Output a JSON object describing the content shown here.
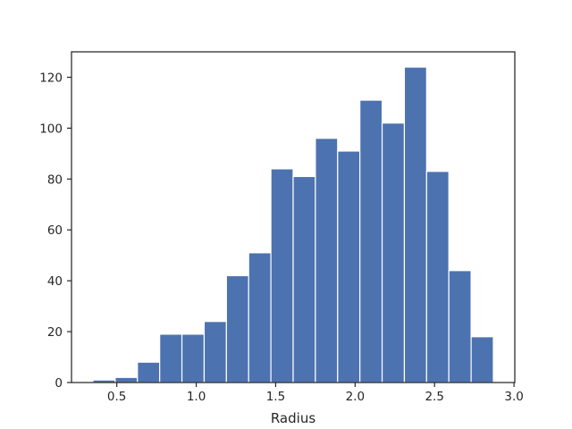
{
  "chart_data": {
    "type": "histogram",
    "bin_edges": [
      0.35,
      0.49,
      0.63,
      0.77,
      0.91,
      1.05,
      1.19,
      1.33,
      1.47,
      1.61,
      1.75,
      1.89,
      2.03,
      2.17,
      2.31,
      2.45,
      2.59,
      2.73,
      2.87
    ],
    "values": [
      1,
      2,
      8,
      19,
      19,
      24,
      42,
      51,
      84,
      81,
      96,
      91,
      111,
      102,
      124,
      83,
      44,
      18
    ],
    "xlabel": "Radius",
    "ylabel": "",
    "xlim": [
      0.215,
      3.005
    ],
    "ylim": [
      0,
      130
    ],
    "xticks": [
      0.5,
      1.0,
      1.5,
      2.0,
      2.5,
      3.0
    ],
    "xtick_labels": [
      "0.5",
      "1.0",
      "1.5",
      "2.0",
      "2.5",
      "3.0"
    ],
    "yticks": [
      0,
      20,
      40,
      60,
      80,
      100,
      120
    ],
    "ytick_labels": [
      "0",
      "20",
      "40",
      "60",
      "80",
      "100",
      "120"
    ],
    "bar_color": "#4c72b0",
    "grid": false,
    "legend": "none"
  }
}
